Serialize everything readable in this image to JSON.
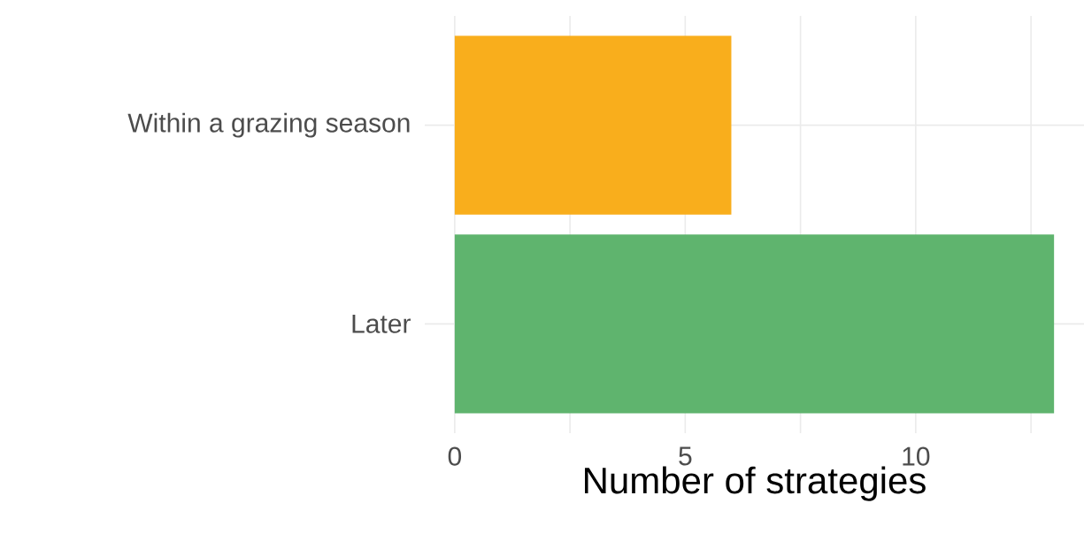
{
  "chart_data": {
    "type": "bar",
    "orientation": "horizontal",
    "xlabel": "Number of strategies",
    "categories": [
      "Within a grazing season",
      "Later"
    ],
    "values": [
      6,
      13
    ],
    "colors": [
      "#f9ae1c",
      "#5fb46e"
    ],
    "xlim": [
      -0.65,
      13.65
    ],
    "xticks": [
      0,
      {
        "value": 2.5,
        "label": null
      },
      5,
      {
        "value": 7.5,
        "label": null
      },
      10,
      {
        "value": 12.5,
        "label": null
      }
    ],
    "grid": true
  }
}
